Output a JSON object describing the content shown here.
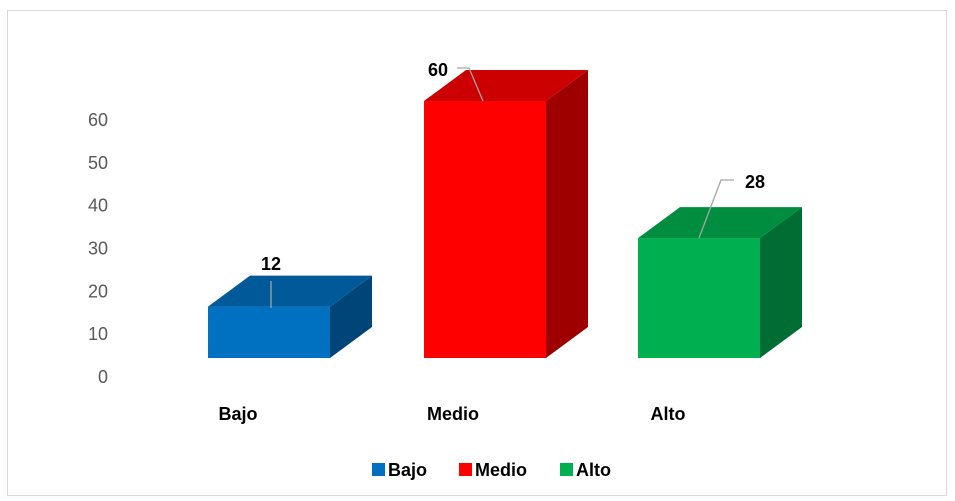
{
  "chart_data": {
    "type": "bar",
    "style": "3d-column",
    "categories": [
      "Bajo",
      "Medio",
      "Alto"
    ],
    "values": [
      12,
      60,
      28
    ],
    "colors": [
      "#0070c0",
      "#ff0000",
      "#00b050"
    ],
    "title": "",
    "xlabel": "",
    "ylabel": "",
    "ylim": [
      0,
      60
    ],
    "yticks": [
      0,
      10,
      20,
      30,
      40,
      50,
      60
    ],
    "data_labels": true,
    "grid": false,
    "legend": {
      "position": "bottom",
      "entries": [
        "Bajo",
        "Medio",
        "Alto"
      ]
    }
  }
}
